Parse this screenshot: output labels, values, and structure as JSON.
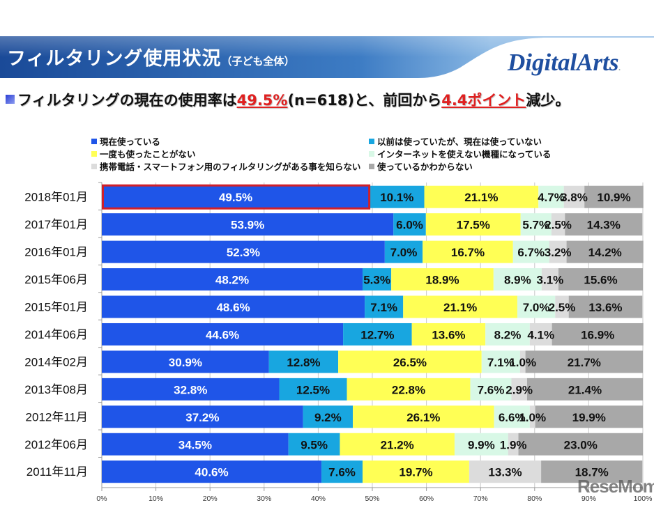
{
  "header": {
    "title": "フィルタリング使用状況",
    "subtitle": "（子ども全体）",
    "logo_text": "DigitalArts",
    "logo_dot": "."
  },
  "headline": {
    "part1": "フィルタリングの現在の使用率は",
    "highlight1": "49.5%",
    "part2": "(n=618)と、前回から",
    "highlight2": "4.4ポイント",
    "part3": "減少。"
  },
  "colors": {
    "header_dark": "#1c4d9c",
    "header_light": "#6fa8dc",
    "accent_red": "#e02020",
    "highlight_border": "#d0202a"
  },
  "watermark": "ReseMom",
  "chart_data": {
    "type": "bar",
    "orientation": "horizontal-stacked-100",
    "title": "フィルタリング使用状況（子ども全体）",
    "xlabel": "",
    "ylabel": "",
    "xlim": [
      0,
      100
    ],
    "grid": true,
    "legend_position": "top",
    "x_ticks": [
      "0%",
      "10%",
      "20%",
      "30%",
      "40%",
      "50%",
      "60%",
      "70%",
      "80%",
      "90%",
      "100%"
    ],
    "highlighted_category": "2018年01月",
    "categories": [
      "2018年01月",
      "2017年01月",
      "2016年01月",
      "2015年06月",
      "2015年01月",
      "2014年06月",
      "2014年02月",
      "2013年08月",
      "2012年11月",
      "2012年06月",
      "2011年11月"
    ],
    "series": [
      {
        "name": "現在使っている",
        "color": "#1f55e8",
        "label_color": "#ffffff",
        "values": [
          49.5,
          53.9,
          52.3,
          48.2,
          48.6,
          44.6,
          30.9,
          32.8,
          37.2,
          34.5,
          40.6
        ]
      },
      {
        "name": "以前は使っていたが、現在は使っていない",
        "color": "#18a6e0",
        "label_color": "#111111",
        "values": [
          10.1,
          6.0,
          7.0,
          5.3,
          7.1,
          12.7,
          12.8,
          12.5,
          9.2,
          9.5,
          7.6
        ]
      },
      {
        "name": "一度も使ったことがない",
        "color": "#ffff55",
        "label_color": "#111111",
        "values": [
          21.1,
          17.5,
          16.7,
          18.9,
          21.1,
          13.6,
          26.5,
          22.8,
          26.1,
          21.2,
          19.7
        ]
      },
      {
        "name": "インターネットを使えない機種になっている",
        "color": "#d8f8e6",
        "label_color": "#111111",
        "values": [
          4.7,
          5.7,
          6.7,
          8.9,
          7.0,
          8.2,
          7.1,
          7.6,
          6.6,
          9.9,
          null
        ]
      },
      {
        "name": "携帯電話・スマートフォン用のフィルタリングがある事を知らない",
        "color": "#dcdcdc",
        "label_color": "#111111",
        "values": [
          3.8,
          2.5,
          3.2,
          3.1,
          2.5,
          4.1,
          1.0,
          2.9,
          1.0,
          1.9,
          13.3
        ]
      },
      {
        "name": "使っているかわからない",
        "color": "#a8a8a8",
        "label_color": "#111111",
        "values": [
          10.9,
          14.3,
          14.2,
          15.6,
          13.6,
          16.9,
          21.7,
          21.4,
          19.9,
          23.0,
          18.7
        ]
      }
    ]
  }
}
